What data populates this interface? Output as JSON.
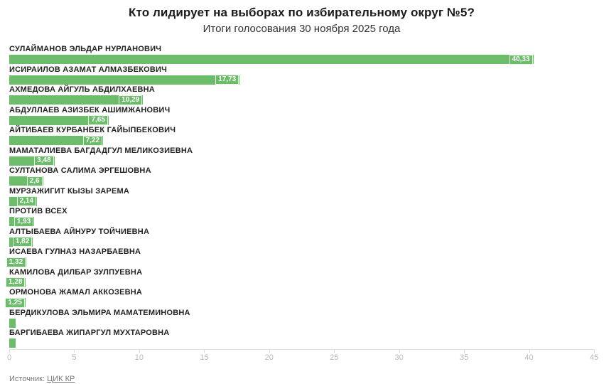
{
  "header": {
    "title": "Кто лидирует на выборах по избирательному округ №5?",
    "subtitle": "Итоги голосования 30 ноября 2025 года"
  },
  "footer": {
    "source_prefix": "Источник:",
    "source_link": "ЦИК КР"
  },
  "colors": {
    "bar": "#6cbc6c",
    "value_text": "#ffffff",
    "label_text": "#222222",
    "tick_text": "#b8b8b8"
  },
  "chart_data": {
    "type": "bar",
    "orientation": "horizontal",
    "title": "Кто лидирует на выборах по избирательному округ №5?",
    "subtitle": "Итоги голосования 30 ноября 2025 года",
    "xlabel": "",
    "ylabel": "",
    "xlim": [
      0,
      45
    ],
    "ticks": [
      0,
      5,
      10,
      15,
      20,
      25,
      30,
      35,
      40,
      45
    ],
    "grid": false,
    "legend": "none",
    "categories": [
      "СУЛАЙМАНОВ ЭЛЬДАР НУРЛАНОВИЧ",
      "ИСИРАИЛОВ АЗАМАТ АЛМАЗБЕКОВИЧ",
      "АХМЕДОВА АЙГУЛЬ АБДИЛХАЕВНА",
      "АБДУЛЛАЕВ АЗИЗБЕК АШИМЖАНОВИЧ",
      "АЙТИБАЕВ КУРБАНБЕК ГАЙЫПБЕКОВИЧ",
      "МАМАТАЛИЕВА БАГДАДГУЛ МЕЛИКОЗИЕВНА",
      "СУЛТАНОВА САЛИМА ЭРГЕШОВНА",
      "МУРЗАЖИГИТ КЫЗЫ ЗАРЕМА",
      "ПРОТИВ ВСЕХ",
      "АЛТЫБАЕВА АЙНУРУ ТОЙЧИЕВНА",
      "ИСАЕВА ГУЛНАЗ НАЗАРБАЕВНА",
      "КАМИЛОВА ДИЛБАР ЗУЛПУЕВНА",
      "ОРМОНОВА ЖАМАЛ АККОЗЕВНА",
      "БЕРДИКУЛОВА ЭЛЬМИРА МАМАТЕМИНОВНА",
      "БАРГИБАЕВА ЖИПАРГУЛ МУХТАРОВНА"
    ],
    "values": [
      40.33,
      17.73,
      10.29,
      7.65,
      7.22,
      3.48,
      2.6,
      2.14,
      1.93,
      1.82,
      1.32,
      1.28,
      1.25,
      0.5,
      0.5
    ],
    "value_labels": [
      "40,33",
      "17,73",
      "10,29",
      "7,65",
      "7,22",
      "3,48",
      "2,6",
      "2,14",
      "1,93",
      "1,82",
      "1,32",
      "1,28",
      "1,25",
      "",
      ""
    ]
  }
}
